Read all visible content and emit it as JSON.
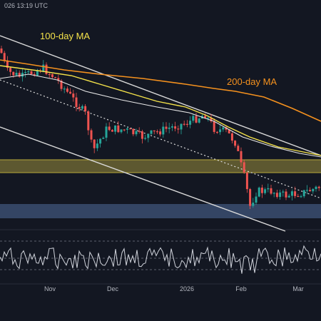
{
  "header": {
    "timestamp": "026 13:19 UTC"
  },
  "chart_data": {
    "type": "candlestick",
    "annotations": [
      {
        "text": "100-day MA",
        "color": "#f5e34a"
      },
      {
        "text": "200-day MA",
        "color": "#f5911e"
      }
    ],
    "xaxis_labels": [
      "Nov",
      "Dec",
      "2026",
      "Feb",
      "Mar"
    ],
    "grid": false,
    "legend": "none",
    "colors": {
      "background": "#131722",
      "up": "#26a69a",
      "down": "#ef5350",
      "ma100": "#f5e34a",
      "ma200": "#f5911e",
      "resistance_zone": "#6b6432",
      "support_zone": "#3b4e70",
      "channel_lines": "#d9d9d9",
      "oscillator": "#d1d4dc"
    },
    "oscillator_levels": [
      "upper",
      "middle",
      "lower"
    ]
  }
}
